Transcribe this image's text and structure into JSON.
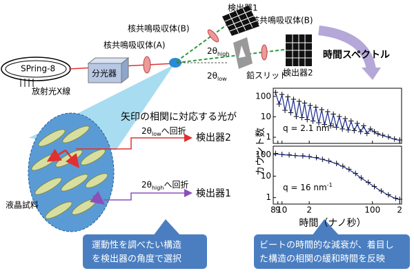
{
  "setup": {
    "source": "SPring-8",
    "beam_label": "放射光X線",
    "monochromator": "分光器",
    "absorber_a": "核共鳴吸収体(A)",
    "absorber_b_upper": "核共鳴吸収体(B)",
    "absorber_b_right": "核共鳴吸収体(B)",
    "detector_1": "検出器1",
    "detector_2": "検出器2",
    "angle_high": {
      "symbol": "2θ",
      "sub": "high"
    },
    "angle_low": {
      "symbol": "2θ",
      "sub": "low"
    },
    "slit": "鉛スリット",
    "spectrum_label": "時間スペクトル"
  },
  "sample": {
    "label": "液晶試料",
    "caption": "矢印の相関に対応する光が",
    "path_low": {
      "symbol": "2θ",
      "sub": "low",
      "suffix": "へ回折",
      "detector": "検出器2"
    },
    "path_high": {
      "symbol": "2θ",
      "sub": "high",
      "suffix": "へ回折",
      "detector": "検出器1"
    }
  },
  "spectra": {
    "y_label": "カウント数",
    "x_label": "時間（ナノ秒）",
    "log_scale": true,
    "xlim": [
      8,
      210
    ],
    "xticks": [
      8,
      9,
      10,
      {
        "value": 20,
        "label": "2"
      },
      100,
      {
        "value": 200,
        "label": "2"
      }
    ],
    "panels": [
      {
        "q_label": {
          "text": "q = 2.1 nm",
          "sup": "-1"
        },
        "ylim": [
          0.5,
          250
        ],
        "yticks": [
          1,
          10,
          100
        ],
        "color": "#e03030",
        "x": [
          8.5,
          9.3,
          10,
          10.8,
          11.6,
          12.5,
          13.4,
          14.4,
          15.5,
          16.6,
          17.8,
          19,
          20.5,
          22,
          23.7,
          25.5,
          27.5,
          29.5,
          32,
          34.5,
          37,
          40,
          43,
          46.5,
          50,
          54,
          58,
          63,
          68,
          74,
          80,
          87,
          95,
          105,
          115,
          130,
          150,
          175,
          200
        ],
        "values": [
          150,
          40,
          120,
          20,
          90,
          15,
          70,
          10,
          55,
          9,
          45,
          7,
          35,
          6,
          28,
          5,
          22,
          4,
          17,
          3.5,
          13,
          3,
          10,
          2.5,
          8,
          2.2,
          6,
          2,
          4.5,
          1.8,
          3.5,
          1.5,
          2.5,
          1.8,
          1.4,
          1.2,
          1,
          0.8,
          0.7
        ]
      },
      {
        "q_label": {
          "text": "q = 16 nm",
          "sup": "-1"
        },
        "ylim": [
          0.5,
          250
        ],
        "yticks": [
          1,
          10,
          100
        ],
        "color": "#e03030",
        "x": [
          8.5,
          10,
          12,
          14,
          17,
          20,
          24,
          28,
          33,
          40,
          47,
          55,
          65,
          75,
          90,
          105,
          125,
          150,
          180,
          200
        ],
        "values": [
          110,
          100,
          95,
          90,
          85,
          80,
          70,
          60,
          50,
          38,
          28,
          20,
          13,
          8,
          5,
          3.2,
          2,
          1.3,
          0.9,
          0.8
        ]
      }
    ]
  },
  "notes": {
    "left": [
      "運動性を調べたい構造",
      "を検出器の角度で選択"
    ],
    "right": [
      "ビートの時間的な減衰が、着目し",
      "た構造の相関の緩和時間を反映"
    ]
  }
}
